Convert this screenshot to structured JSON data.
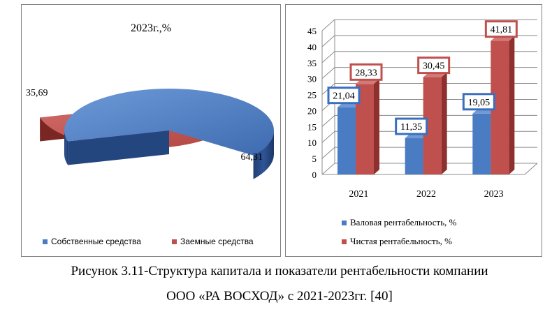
{
  "chart_data": [
    {
      "type": "pie",
      "title": "2023г.,%",
      "legend_position": "bottom",
      "slices": [
        {
          "label": "Собственные средства",
          "value": 64.31,
          "display": "64,31",
          "color": "#4a7cc4"
        },
        {
          "label": "Заемные средства",
          "value": 35.69,
          "display": "35,69",
          "color": "#c0504d"
        }
      ]
    },
    {
      "type": "bar",
      "categories": [
        "2021",
        "2022",
        "2023"
      ],
      "ylim": [
        0,
        45
      ],
      "yticks": [
        0,
        5,
        10,
        15,
        20,
        25,
        30,
        35,
        40,
        45
      ],
      "legend_position": "bottom",
      "series": [
        {
          "name": "Валовая рентабельность, %",
          "values": [
            21.04,
            11.35,
            19.05
          ],
          "labels": [
            "21,04",
            "11,35",
            "19,05"
          ],
          "color": "#4a7cc4"
        },
        {
          "name": "Чистая рентабельность, %",
          "values": [
            28.33,
            30.45,
            41.81
          ],
          "labels": [
            "28,33",
            "30,45",
            "41,81"
          ],
          "color": "#c0504d"
        }
      ]
    }
  ],
  "caption": {
    "line1": "Рисунок 3.11-Структура капитала и показатели рентабельности компании",
    "line2": "ООО «РА ВОСХОД» с 2021-2023гг. [40]"
  }
}
